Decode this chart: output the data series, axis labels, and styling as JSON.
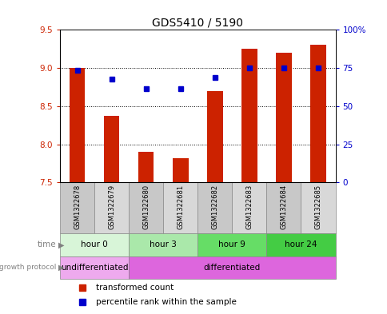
{
  "title": "GDS5410 / 5190",
  "samples": [
    "GSM1322678",
    "GSM1322679",
    "GSM1322680",
    "GSM1322681",
    "GSM1322682",
    "GSM1322683",
    "GSM1322684",
    "GSM1322685"
  ],
  "bar_values": [
    9.0,
    8.37,
    7.9,
    7.82,
    8.7,
    9.25,
    9.2,
    9.3
  ],
  "bar_bottom": 7.5,
  "dot_values_left": [
    8.97,
    8.85,
    8.73,
    8.73,
    8.88,
    9.0,
    9.0,
    9.0
  ],
  "ylim_left": [
    7.5,
    9.5
  ],
  "ylim_right": [
    0,
    100
  ],
  "yticks_left": [
    7.5,
    8.0,
    8.5,
    9.0,
    9.5
  ],
  "yticks_right": [
    0,
    25,
    50,
    75,
    100
  ],
  "ytick_labels_right": [
    "0",
    "25",
    "50",
    "75",
    "100%"
  ],
  "bar_color": "#cc2200",
  "dot_color": "#0000cc",
  "grid_lines": [
    8.0,
    8.5,
    9.0
  ],
  "time_groups": [
    {
      "label": "hour 0",
      "start": 0,
      "end": 2,
      "color": "#d8f5d8"
    },
    {
      "label": "hour 3",
      "start": 2,
      "end": 4,
      "color": "#aae8aa"
    },
    {
      "label": "hour 9",
      "start": 4,
      "end": 6,
      "color": "#66dd66"
    },
    {
      "label": "hour 24",
      "start": 6,
      "end": 8,
      "color": "#44cc44"
    }
  ],
  "growth_groups": [
    {
      "label": "undifferentiated",
      "start": 0,
      "end": 2,
      "color": "#eeaaee"
    },
    {
      "label": "differentiated",
      "start": 2,
      "end": 8,
      "color": "#dd66dd"
    }
  ],
  "legend_items": [
    {
      "label": "transformed count",
      "color": "#cc2200"
    },
    {
      "label": "percentile rank within the sample",
      "color": "#0000cc"
    }
  ],
  "sample_cell_color": "#c8c8c8",
  "fig_width": 4.85,
  "fig_height": 3.93,
  "bg_color": "#ffffff"
}
